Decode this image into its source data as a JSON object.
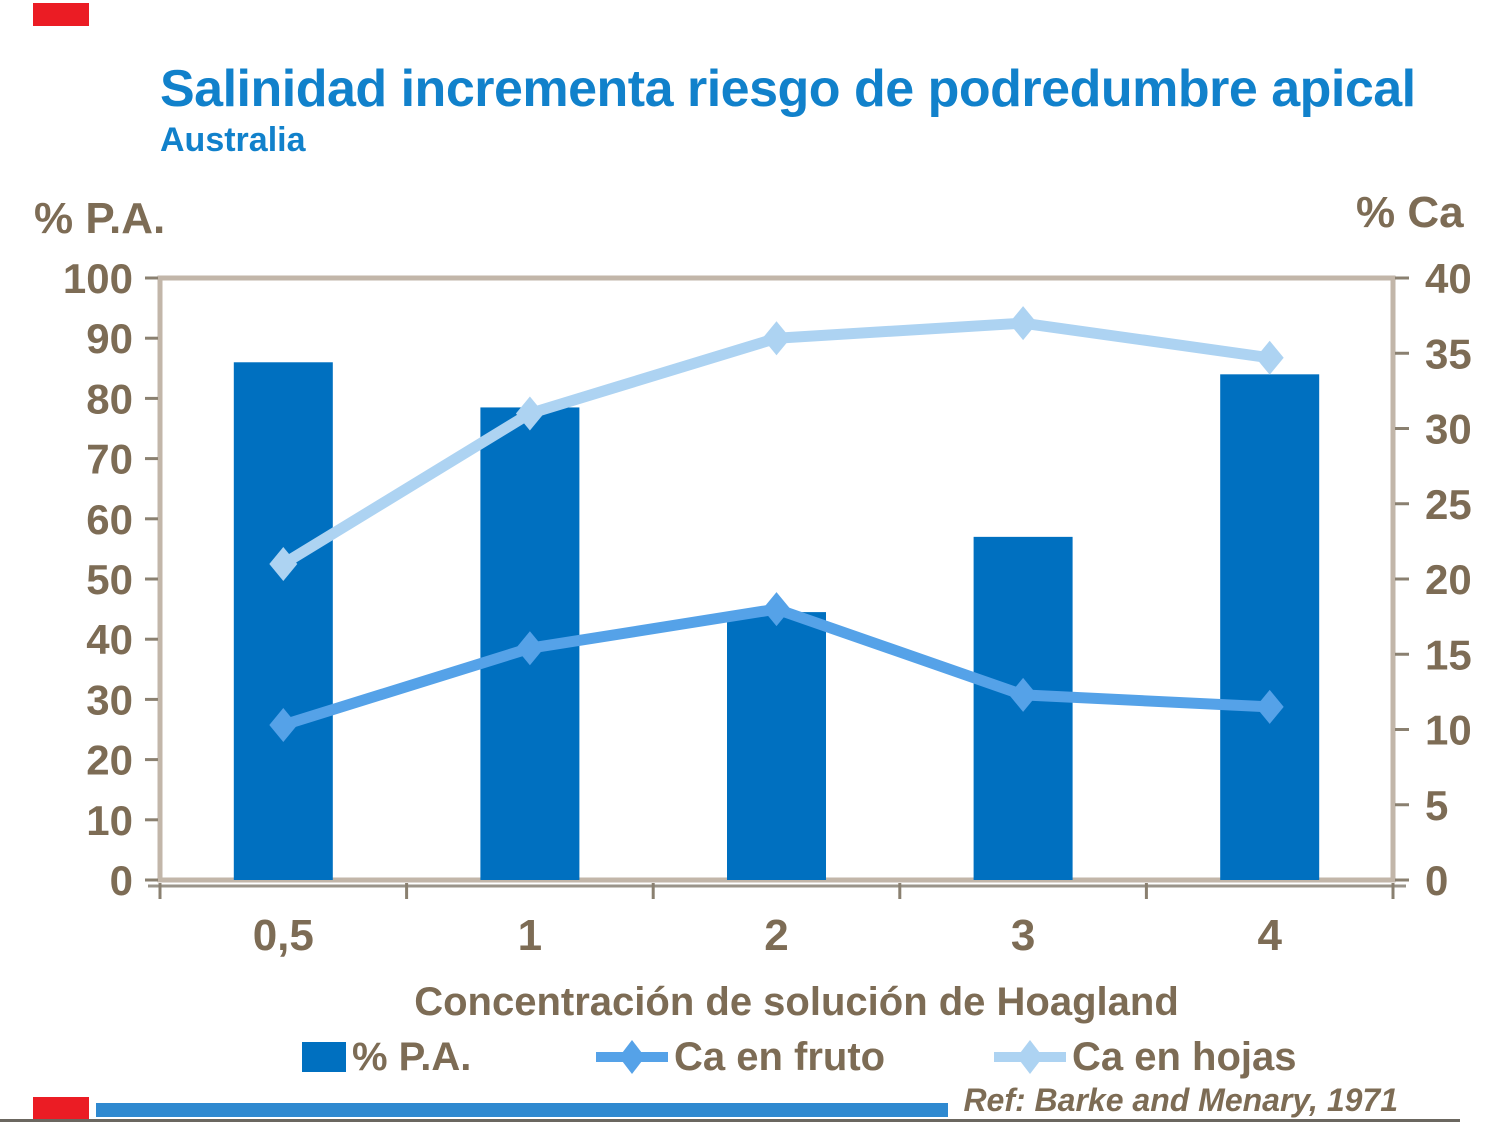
{
  "slide": {
    "title": "Salinidad incrementa riesgo de podredumbre apical",
    "subtitle": "Australia",
    "reference": "Ref: Barke and Menary, 1971"
  },
  "chart_data": {
    "type": "bar",
    "subtype": "dual-axis bar + line combo",
    "categories": [
      "0,5",
      "1",
      "2",
      "3",
      "4"
    ],
    "series": [
      {
        "name": "% P.A.",
        "type": "bar",
        "axis": "left",
        "color": "#0070C0",
        "values": [
          86,
          78.5,
          44.5,
          57,
          84
        ]
      },
      {
        "name": "Ca en fruto",
        "type": "line",
        "axis": "right",
        "color": "#55A2E8",
        "values": [
          10.3,
          15.4,
          18,
          12.3,
          11.5
        ]
      },
      {
        "name": "Ca en hojas",
        "type": "line",
        "axis": "right",
        "color": "#ADD3F2",
        "values": [
          21,
          31,
          36,
          37,
          34.7
        ]
      }
    ],
    "left_axis": {
      "label": "% P.A.",
      "min": 0,
      "max": 100,
      "step": 10
    },
    "right_axis": {
      "label": "% Ca",
      "min": 0,
      "max": 40,
      "step": 5
    },
    "xlabel": "Concentración de solución de Hoagland",
    "legend_position": "bottom",
    "grid": false
  },
  "colors": {
    "title_blue": "#1181CB",
    "bar_blue": "#0070C0",
    "line_fruto_blue": "#55A2E8",
    "line_hojas_blue": "#ADD3F2",
    "axis_text_brown": "#7D6C55",
    "axis_frame_tan": "#C2B6A9",
    "tick_gray": "#8A8070",
    "corner_red": "#EB1C24",
    "footer_bar_blue": "#2F89D0",
    "footer_rule_gray": "#6B6760"
  }
}
